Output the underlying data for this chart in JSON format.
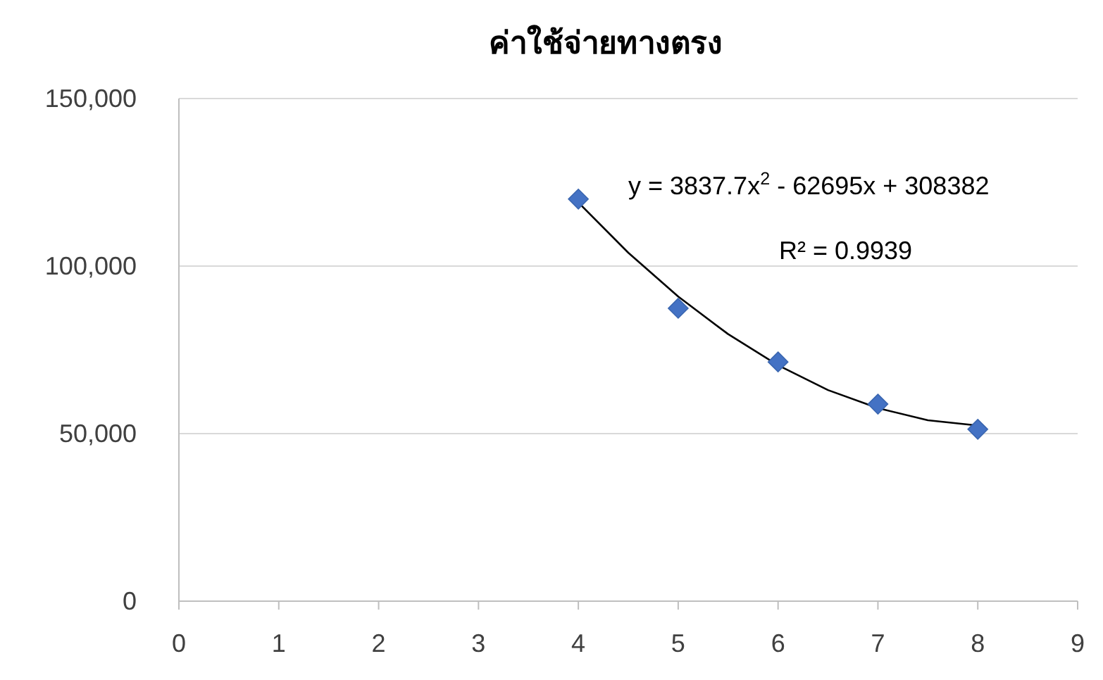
{
  "chart_data": {
    "type": "scatter",
    "title": "ค่าใช้จ่ายทางตรง",
    "x": [
      4,
      5,
      6,
      7,
      8
    ],
    "series": [
      {
        "type": "scatter",
        "color": "#4472c4",
        "marker": "diamond",
        "values": [
          120000,
          87400,
          71400,
          58800,
          51300
        ]
      },
      {
        "type": "line",
        "color": "#000000",
        "marker": "none",
        "line_style": "solid",
        "x": [
          4,
          4.5,
          5,
          5.5,
          6,
          6.5,
          7,
          7.5,
          8
        ],
        "values": [
          119000,
          104000,
          90900,
          79700,
          70400,
          63000,
          57600,
          54000,
          52400
        ]
      }
    ],
    "xlim": [
      0,
      9
    ],
    "xticks": [
      0,
      1,
      2,
      3,
      4,
      5,
      6,
      7,
      8,
      9
    ],
    "ylim": [
      0,
      150000
    ],
    "yticks": [
      {
        "value": 0,
        "label": "0"
      },
      {
        "value": 50000,
        "label": "50,000"
      },
      {
        "value": 100000,
        "label": "100,000"
      },
      {
        "value": 150000,
        "label": "150,000"
      }
    ],
    "grid": "y",
    "annotations": [
      "y = 3837.7x$^{2}$ - 62695x + 308382",
      "R² = 0.9939"
    ]
  }
}
